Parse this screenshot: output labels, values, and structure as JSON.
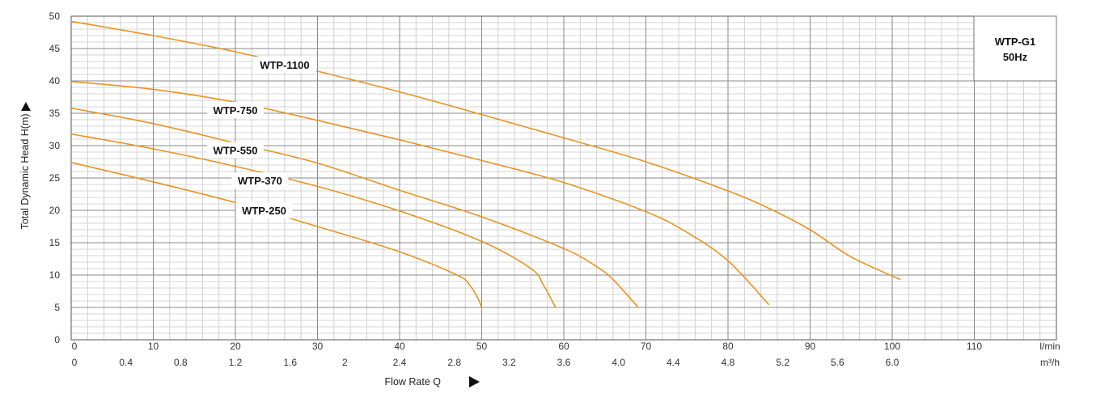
{
  "chart_data": {
    "type": "line",
    "title": "",
    "legend_box": {
      "line1": "WTP-G1",
      "line2": "50Hz",
      "placement": "top-right"
    },
    "ylabel": "Total Dynamic Head H(m)",
    "xlabel": "Flow Rate Q",
    "x_unit": "l/min",
    "x2_unit": "m³/h",
    "xlim": [
      0,
      120
    ],
    "ylim": [
      0,
      50
    ],
    "x_ticks": [
      "0",
      "10",
      "20",
      "30",
      "40",
      "50",
      "60",
      "70",
      "80",
      "90",
      "100",
      "110"
    ],
    "x2_ticks": [
      "0",
      "0.4",
      "0.8",
      "1.2",
      "1.6",
      "2",
      "2.4",
      "2.8",
      "3.2",
      "3.6",
      "4.0",
      "4.4",
      "4.8",
      "5.2",
      "5.6",
      "6.0"
    ],
    "y_ticks": [
      "0",
      "5",
      "10",
      "15",
      "20",
      "25",
      "30",
      "35",
      "40",
      "45",
      "50"
    ],
    "grid": true,
    "line_color": "#E8941F",
    "series": [
      {
        "name": "WTP-1100",
        "x": [
          0,
          10,
          20,
          30,
          40,
          50,
          60,
          70,
          80,
          85,
          90,
          95,
          101
        ],
        "y": [
          49.2,
          47.0,
          44.5,
          41.5,
          38.3,
          34.8,
          31.2,
          27.5,
          23.0,
          20.3,
          17.0,
          12.8,
          9.3
        ],
        "label_at": [
          26,
          42.5
        ]
      },
      {
        "name": "WTP-750",
        "x": [
          0,
          10,
          20,
          30,
          40,
          50,
          60,
          70,
          75,
          80,
          85
        ],
        "y": [
          39.9,
          38.7,
          36.7,
          33.9,
          30.9,
          27.7,
          24.3,
          19.8,
          16.6,
          12.2,
          5.4
        ],
        "label_at": [
          20,
          35.5
        ]
      },
      {
        "name": "WTP-550",
        "x": [
          0,
          10,
          20,
          30,
          40,
          50,
          60,
          64,
          66,
          69
        ],
        "y": [
          35.8,
          33.4,
          30.4,
          27.3,
          23.1,
          19.0,
          14.1,
          11.3,
          9.3,
          5.1
        ],
        "label_at": [
          20,
          29.3
        ]
      },
      {
        "name": "WTP-370",
        "x": [
          0,
          10,
          20,
          30,
          40,
          50,
          56,
          57.5,
          59
        ],
        "y": [
          31.8,
          29.5,
          26.8,
          23.7,
          19.9,
          15.2,
          11.0,
          8.5,
          5.0
        ],
        "label_at": [
          23,
          24.6
        ]
      },
      {
        "name": "WTP-250",
        "x": [
          0,
          10,
          20,
          30,
          40,
          47,
          48.5,
          49.5,
          50
        ],
        "y": [
          27.4,
          24.4,
          21.2,
          17.5,
          13.6,
          10.0,
          8.5,
          6.5,
          5.0
        ],
        "label_at": [
          23.5,
          20.0
        ]
      }
    ]
  }
}
